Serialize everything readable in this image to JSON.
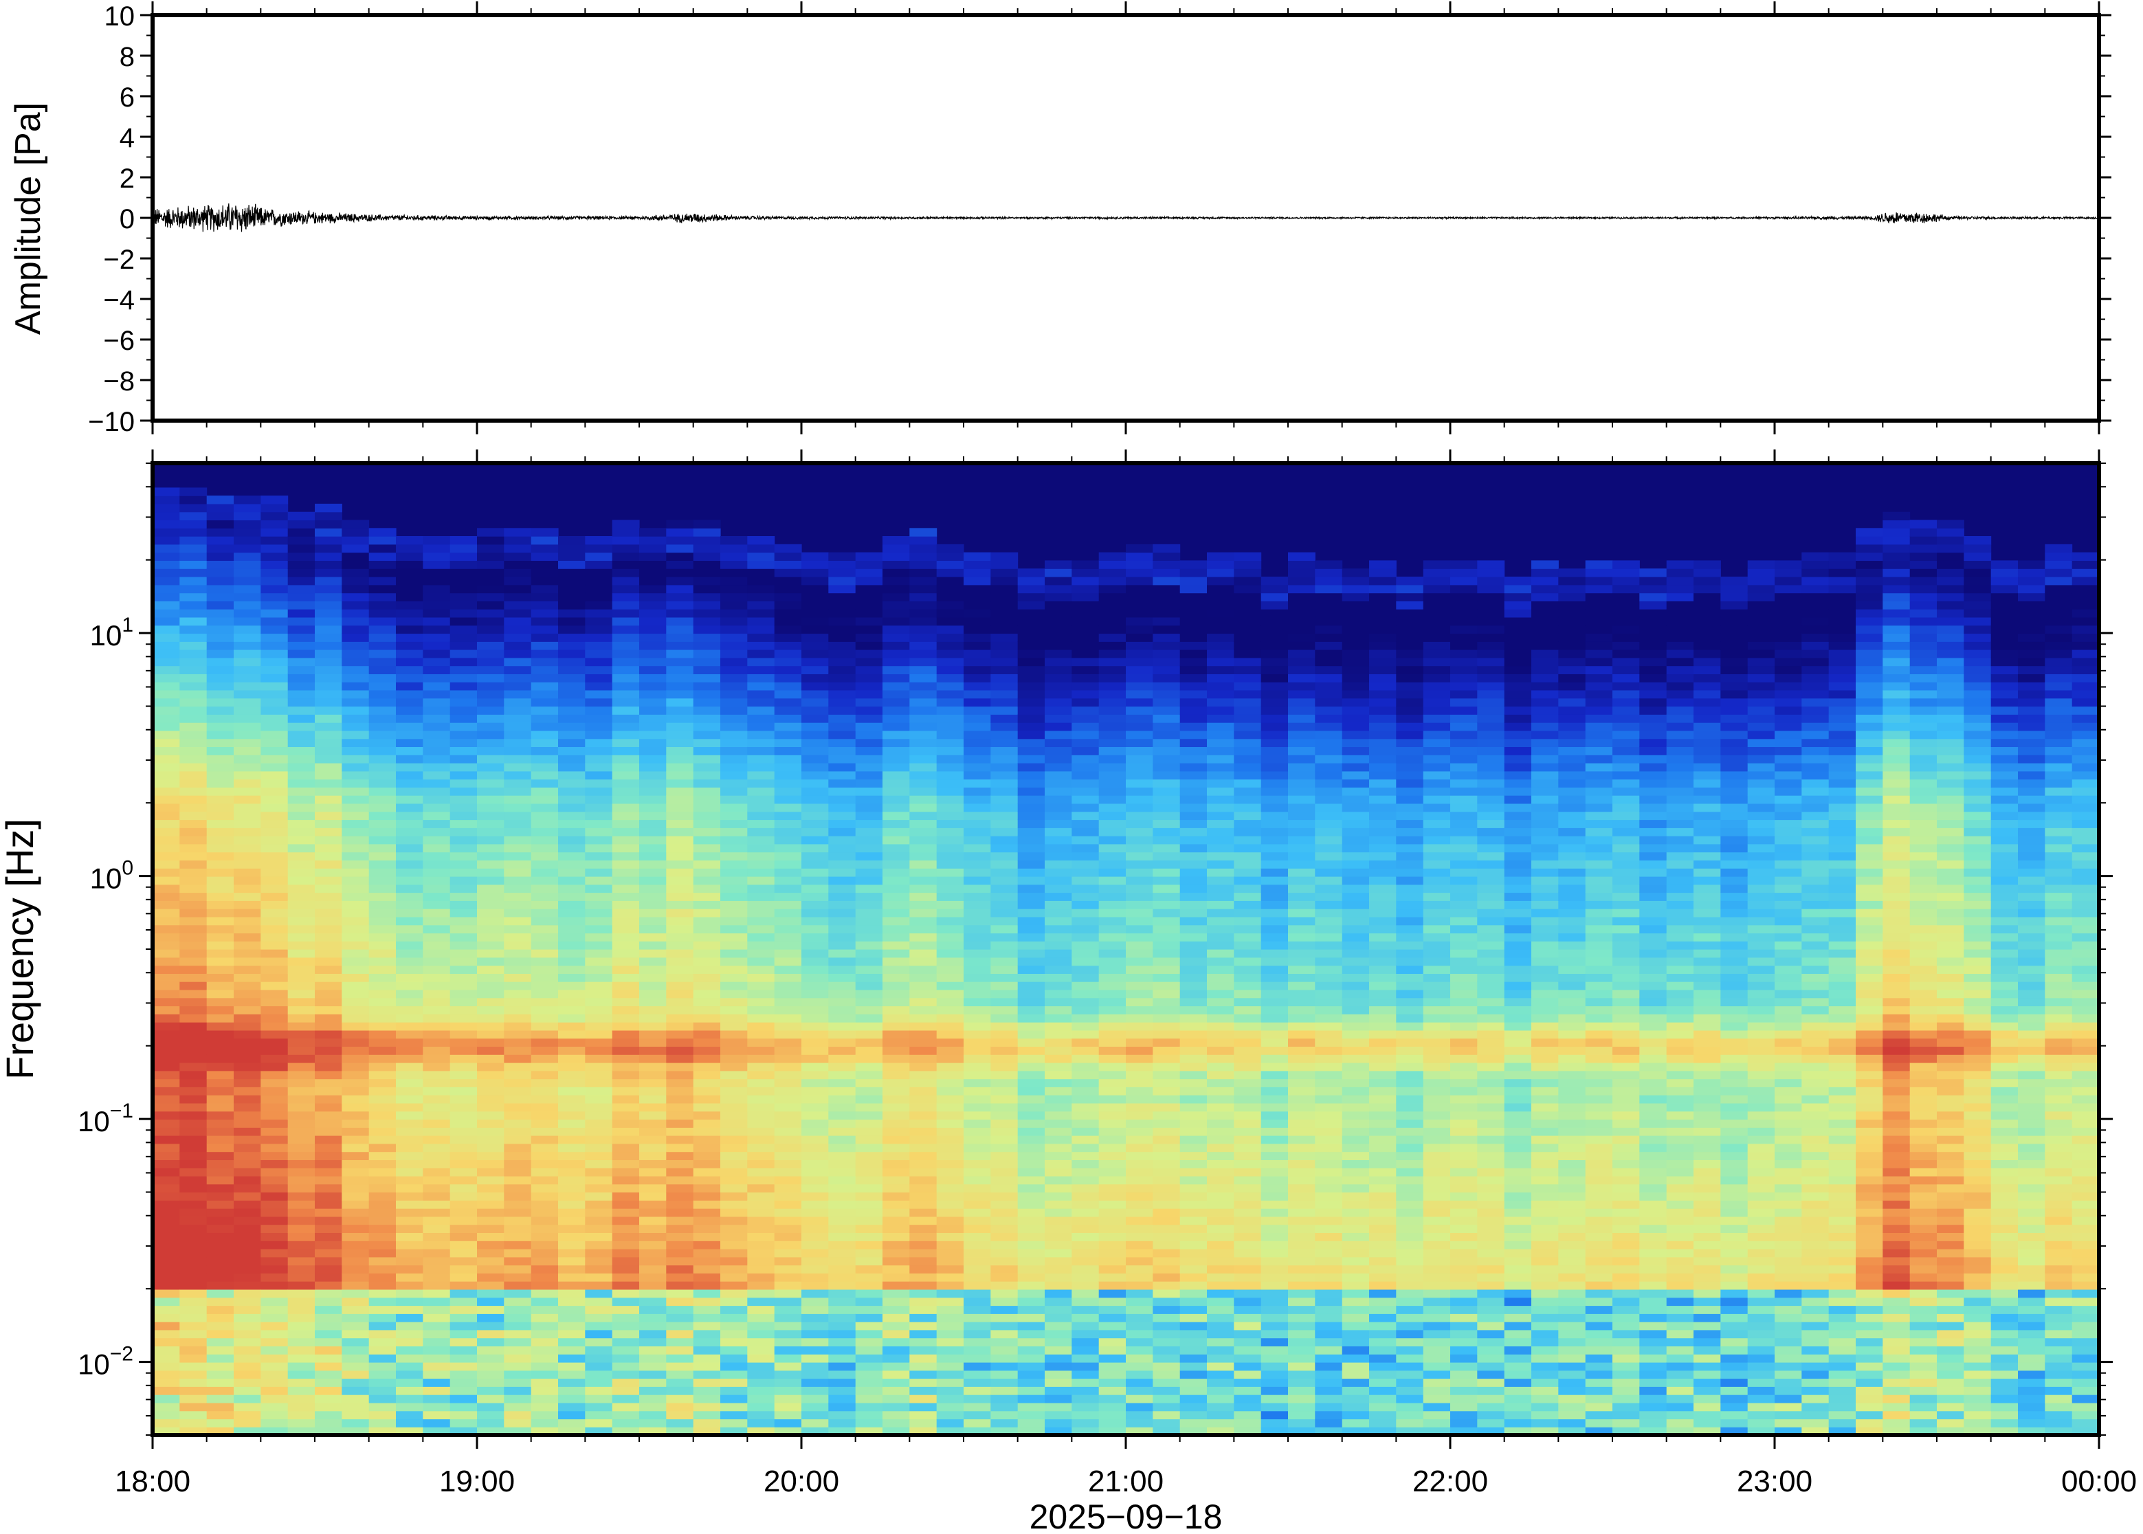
{
  "chart_data": [
    {
      "type": "line",
      "panel": "waveform",
      "ylabel": "Amplitude [Pa]",
      "ylim": [
        -10,
        10
      ],
      "yticks": [
        {
          "value": 10,
          "label": "10"
        },
        {
          "value": 8,
          "label": "8"
        },
        {
          "value": 6,
          "label": "6"
        },
        {
          "value": 4,
          "label": "4"
        },
        {
          "value": 2,
          "label": "2"
        },
        {
          "value": 0,
          "label": "0"
        },
        {
          "value": -2,
          "label": "−2"
        },
        {
          "value": -4,
          "label": "−4"
        },
        {
          "value": -6,
          "label": "−6"
        },
        {
          "value": -8,
          "label": "−8"
        },
        {
          "value": -10,
          "label": "−10"
        }
      ],
      "xlim_hours": [
        18,
        24
      ],
      "envelope": {
        "note_hours": "amplitude envelope (Pa) sampled along time",
        "points": [
          [
            18.0,
            0.55
          ],
          [
            18.1,
            0.7
          ],
          [
            18.2,
            0.8
          ],
          [
            18.27,
            0.95
          ],
          [
            18.35,
            0.55
          ],
          [
            18.5,
            0.35
          ],
          [
            18.7,
            0.18
          ],
          [
            19.0,
            0.1
          ],
          [
            19.5,
            0.1
          ],
          [
            19.66,
            0.3
          ],
          [
            19.8,
            0.12
          ],
          [
            20.0,
            0.08
          ],
          [
            20.5,
            0.06
          ],
          [
            21.0,
            0.06
          ],
          [
            21.5,
            0.05
          ],
          [
            22.0,
            0.05
          ],
          [
            22.5,
            0.05
          ],
          [
            23.0,
            0.06
          ],
          [
            23.3,
            0.1
          ],
          [
            23.35,
            0.4
          ],
          [
            23.45,
            0.35
          ],
          [
            23.55,
            0.1
          ],
          [
            23.8,
            0.06
          ],
          [
            24.0,
            0.06
          ]
        ]
      },
      "grid": false
    },
    {
      "type": "heatmap",
      "panel": "spectrogram",
      "ylabel": "Frequency [Hz]",
      "yscale": "log",
      "ylim": [
        0.005,
        50
      ],
      "yticks": [
        {
          "value": 0.01,
          "base": "10",
          "exp": "−2"
        },
        {
          "value": 0.1,
          "base": "10",
          "exp": "−1"
        },
        {
          "value": 1,
          "base": "10",
          "exp": "0"
        },
        {
          "value": 10,
          "base": "10",
          "exp": "1"
        }
      ],
      "xlim_hours": [
        18,
        24
      ],
      "xticks": [
        {
          "value": 18,
          "label": "18:00"
        },
        {
          "value": 19,
          "label": "19:00"
        },
        {
          "value": 20,
          "label": "20:00"
        },
        {
          "value": 21,
          "label": "21:00"
        },
        {
          "value": 22,
          "label": "22:00"
        },
        {
          "value": 23,
          "label": "23:00"
        },
        {
          "value": 24,
          "label": "00:00"
        }
      ],
      "xlabel": "2025−09−18",
      "colormap": [
        "#0c0a78",
        "#1428c8",
        "#1e78ee",
        "#3cbef7",
        "#7fe8c8",
        "#d8f08a",
        "#f7d66a",
        "#f08a4a",
        "#d03c36"
      ],
      "bands": [
        {
          "name": "microbarom",
          "center_hz": 0.2,
          "level": 0.68
        },
        {
          "name": "low_freq_energy",
          "center_hz": 0.04,
          "level": 0.62
        }
      ],
      "activity_hours": [
        {
          "t": 18.0,
          "level": 0.92
        },
        {
          "t": 18.25,
          "level": 0.95
        },
        {
          "t": 18.5,
          "level": 0.75
        },
        {
          "t": 18.75,
          "level": 0.55
        },
        {
          "t": 19.0,
          "level": 0.45
        },
        {
          "t": 19.25,
          "level": 0.55
        },
        {
          "t": 19.5,
          "level": 0.62
        },
        {
          "t": 19.66,
          "level": 0.72
        },
        {
          "t": 19.85,
          "level": 0.48
        },
        {
          "t": 20.1,
          "level": 0.4
        },
        {
          "t": 20.4,
          "level": 0.52
        },
        {
          "t": 20.6,
          "level": 0.3
        },
        {
          "t": 21.0,
          "level": 0.34
        },
        {
          "t": 21.25,
          "level": 0.36
        },
        {
          "t": 21.5,
          "level": 0.28
        },
        {
          "t": 21.75,
          "level": 0.26
        },
        {
          "t": 22.0,
          "level": 0.28
        },
        {
          "t": 22.25,
          "level": 0.26
        },
        {
          "t": 22.5,
          "level": 0.28
        },
        {
          "t": 22.75,
          "level": 0.26
        },
        {
          "t": 23.0,
          "level": 0.3
        },
        {
          "t": 23.2,
          "level": 0.34
        },
        {
          "t": 23.4,
          "level": 0.78
        },
        {
          "t": 23.55,
          "level": 0.55
        },
        {
          "t": 23.75,
          "level": 0.35
        },
        {
          "t": 24.0,
          "level": 0.42
        }
      ]
    }
  ]
}
